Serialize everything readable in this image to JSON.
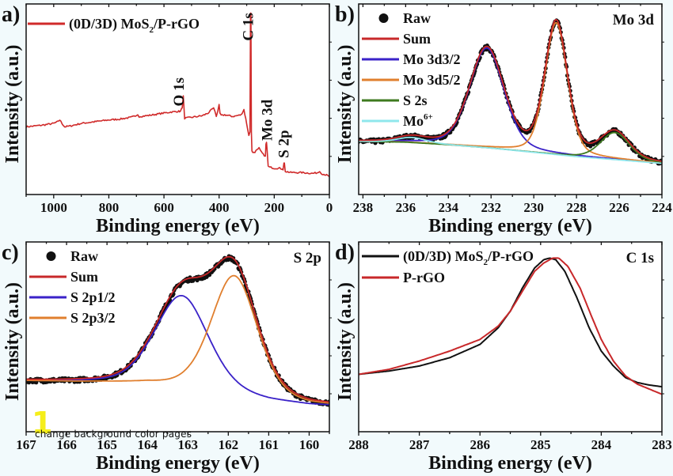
{
  "watermark": {
    "number": "1",
    "text": "change background color pages"
  },
  "chart_data": [
    {
      "id": "a",
      "panel_label": "a)",
      "type": "line",
      "title": "",
      "xlabel": "Binding energy (eV)",
      "ylabel": "Intensity (a.u.)",
      "xlim": [
        1100,
        0
      ],
      "xticks": [
        1000,
        800,
        600,
        400,
        200,
        0
      ],
      "ylim": [
        0,
        100
      ],
      "legend": {
        "placement": "top-left",
        "entries": [
          {
            "name": "(0D/3D) MoS2/P-rGO",
            "name_main": "(0D/3D) MoS",
            "name_sub": "2",
            "name_tail": "/P-rGO",
            "color": "#d02a2a",
            "marker": "line"
          }
        ]
      },
      "annotations": [
        {
          "text": "O 1s",
          "x": 545,
          "y": 42
        },
        {
          "text": "C 1s",
          "x": 295,
          "y": 80
        },
        {
          "text": "Mo 3d",
          "x": 225,
          "y": 22
        },
        {
          "text": "S 2p",
          "x": 165,
          "y": 12
        }
      ],
      "series": [
        {
          "name": "(0D/3D) MoS2/P-rGO",
          "color": "#d02a2a",
          "x": [
            1100,
            1040,
            1000,
            985,
            978,
            970,
            960,
            940,
            900,
            850,
            800,
            760,
            720,
            700,
            695,
            690,
            660,
            620,
            580,
            550,
            540,
            534,
            530,
            525,
            500,
            460,
            440,
            420,
            415,
            410,
            405,
            400,
            397,
            392,
            380,
            350,
            320,
            310,
            300,
            292,
            288,
            286,
            284.5,
            283,
            281,
            278,
            270,
            260,
            255,
            250,
            240,
            232,
            230,
            228,
            226,
            222,
            215,
            200,
            180,
            170,
            168,
            165,
            163,
            160,
            155,
            140,
            100,
            60,
            40,
            35,
            30,
            20,
            10,
            0
          ],
          "y": [
            31,
            32,
            33,
            34,
            35,
            33,
            31,
            31.5,
            33,
            34,
            35,
            35.5,
            36.5,
            37.5,
            38,
            37,
            37.5,
            38.5,
            39.5,
            40,
            40,
            42,
            49,
            36,
            36.5,
            37.5,
            39,
            42,
            40,
            37,
            40,
            44,
            39,
            37.5,
            38,
            37,
            38,
            41,
            33,
            26,
            28,
            97,
            97,
            28,
            17,
            16,
            16.5,
            18,
            19,
            17,
            15,
            14,
            21,
            22,
            18,
            8,
            7.5,
            7,
            7,
            6.5,
            6,
            10,
            10,
            5,
            5,
            4.5,
            4.5,
            4,
            4.5,
            5,
            4,
            3.5,
            3,
            2
          ]
        }
      ]
    },
    {
      "id": "b",
      "panel_label": "b)",
      "type": "line",
      "title": "Mo 3d",
      "xlabel": "Binding energy (eV)",
      "ylabel": "Intensity (a.u.)",
      "xlim": [
        238.2,
        224
      ],
      "xticks": [
        238,
        236,
        234,
        232,
        230,
        228,
        226,
        224
      ],
      "ylim": [
        0,
        100
      ],
      "legend": {
        "placement": "top-left",
        "entries": [
          {
            "name": "Raw",
            "color": "#111111",
            "marker": "dot"
          },
          {
            "name": "Sum",
            "color": "#c8282a",
            "marker": "line"
          },
          {
            "name": "Mo 3d3/2",
            "color": "#3a22c8",
            "marker": "line"
          },
          {
            "name": "Mo 3d5/2",
            "color": "#e07f2e",
            "marker": "line"
          },
          {
            "name": "S 2s",
            "color": "#3e7a1f",
            "marker": "line"
          },
          {
            "name": "Mo6+",
            "name_main": "Mo",
            "name_sup": "6+",
            "color": "#8fe7ec",
            "marker": "line"
          }
        ]
      },
      "baseline": {
        "x": [
          238.2,
          236,
          234,
          232,
          230,
          228,
          226,
          224
        ],
        "y": [
          23,
          22.5,
          21,
          19,
          16.5,
          14,
          12,
          10
        ]
      },
      "series": [
        {
          "name": "Raw",
          "color": "#111111",
          "kind": "points",
          "components_sum": true,
          "noise": 1.2
        },
        {
          "name": "Sum",
          "color": "#c8282a",
          "kind": "sum"
        },
        {
          "name": "Mo 3d3/2",
          "color": "#3a22c8",
          "kind": "peak",
          "center": 232.2,
          "height": 59,
          "fwhm": 1.9
        },
        {
          "name": "Mo 3d5/2",
          "color": "#e07f2e",
          "kind": "peak",
          "center": 228.95,
          "height": 78,
          "fwhm": 1.25
        },
        {
          "name": "S 2s",
          "color": "#3e7a1f",
          "kind": "peak",
          "center": 226.2,
          "height": 16,
          "fwhm": 1.6
        },
        {
          "name": "Mo6+",
          "color": "#8fe7ec",
          "kind": "peak",
          "center": 235.7,
          "height": 3,
          "fwhm": 1.6
        }
      ]
    },
    {
      "id": "c",
      "panel_label": "c)",
      "type": "line",
      "title": "S 2p",
      "xlabel": "Binding energy (eV)",
      "ylabel": "Intensity (a.u.)",
      "xlim": [
        167,
        159.5
      ],
      "xticks": [
        167,
        166,
        165,
        164,
        163,
        162,
        161,
        160
      ],
      "ylim": [
        0,
        100
      ],
      "legend": {
        "placement": "top-left",
        "entries": [
          {
            "name": "Raw",
            "color": "#111111",
            "marker": "dot"
          },
          {
            "name": "Sum",
            "color": "#c8282a",
            "marker": "line"
          },
          {
            "name": "S 2p1/2",
            "color": "#3a22c8",
            "marker": "line"
          },
          {
            "name": "S 2p3/2",
            "color": "#e07f2e",
            "marker": "line"
          }
        ]
      },
      "baseline": {
        "x": [
          167,
          164,
          163,
          162,
          161,
          160,
          159.5
        ],
        "y": [
          22,
          20.5,
          18,
          14,
          10,
          7.5,
          7
        ]
      },
      "series": [
        {
          "name": "Raw",
          "color": "#111111",
          "kind": "points",
          "noise": 1.2
        },
        {
          "name": "Sum",
          "color": "#c8282a",
          "kind": "sum"
        },
        {
          "name": "S 2p1/2",
          "color": "#3a22c8",
          "kind": "peak",
          "center": 163.15,
          "height": 55,
          "fwhm": 1.55
        },
        {
          "name": "S 2p3/2",
          "color": "#e07f2e",
          "kind": "peak",
          "center": 161.85,
          "height": 72,
          "fwhm": 1.35
        }
      ]
    },
    {
      "id": "d",
      "panel_label": "d)",
      "type": "line",
      "title": "C 1s",
      "xlabel": "Binding energy (eV)",
      "ylabel": "Intensity (a.u.)",
      "xlim": [
        288,
        283
      ],
      "xticks": [
        288,
        287,
        286,
        285,
        284,
        283
      ],
      "ylim": [
        0,
        100
      ],
      "legend": {
        "placement": "top-left",
        "entries": [
          {
            "name": "(0D/3D) MoS2/P-rGO",
            "name_main": "(0D/3D) MoS",
            "name_sub": "2",
            "name_tail": "/P-rGO",
            "color": "#111111",
            "marker": "line"
          },
          {
            "name": "P-rGO",
            "color": "#c8282a",
            "marker": "line"
          }
        ]
      },
      "series": [
        {
          "name": "(0D/3D) MoS2/P-rGO",
          "color": "#111111",
          "x": [
            288,
            287.5,
            287,
            286.5,
            286,
            285.7,
            285.5,
            285.3,
            285.1,
            284.95,
            284.85,
            284.75,
            284.6,
            284.4,
            284.2,
            284.0,
            283.8,
            283.6,
            283.4,
            283.2,
            283
          ],
          "y": [
            26,
            28,
            31,
            36,
            44,
            54,
            64,
            78,
            90,
            95,
            96,
            95,
            88,
            72,
            54,
            40,
            31,
            24,
            21,
            19.5,
            18.5
          ]
        },
        {
          "name": "P-rGO",
          "color": "#c8282a",
          "x": [
            288,
            287.5,
            287,
            286.5,
            286,
            285.7,
            285.5,
            285.3,
            285.1,
            284.95,
            284.8,
            284.7,
            284.55,
            284.35,
            284.15,
            284.0,
            283.8,
            283.6,
            283.4,
            283.2,
            283
          ],
          "y": [
            26,
            29,
            34,
            40,
            47,
            55,
            64,
            76,
            88,
            93,
            96,
            96,
            91,
            78,
            60,
            47,
            34,
            25,
            20,
            17,
            14
          ]
        }
      ]
    }
  ]
}
